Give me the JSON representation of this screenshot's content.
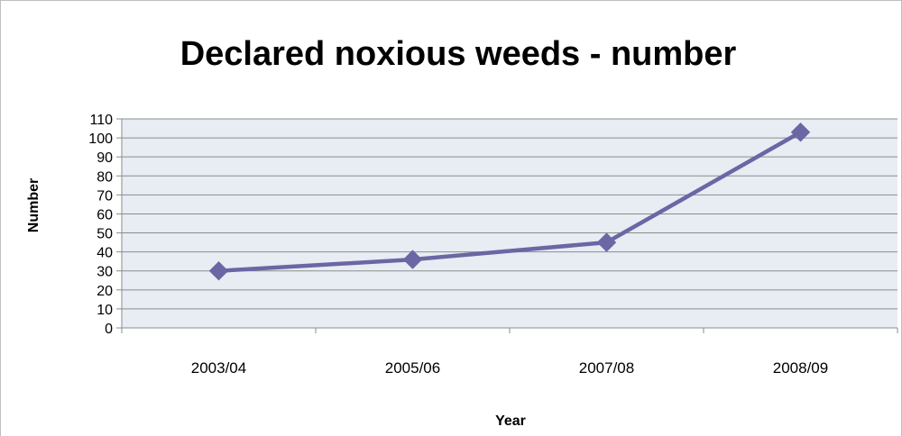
{
  "chart_data": {
    "type": "line",
    "title": "Declared noxious weeds - number",
    "xlabel": "Year",
    "ylabel": "Number",
    "categories": [
      "2003/04",
      "2005/06",
      "2007/08",
      "2008/09"
    ],
    "series": [
      {
        "values": [
          30,
          36,
          45,
          103
        ],
        "color": "#6b66a4",
        "marker": "diamond"
      }
    ],
    "ylim": [
      0,
      110
    ],
    "ytick_step": 10,
    "grid": true,
    "legend": "none",
    "plot_background": "#e8ecf3"
  }
}
